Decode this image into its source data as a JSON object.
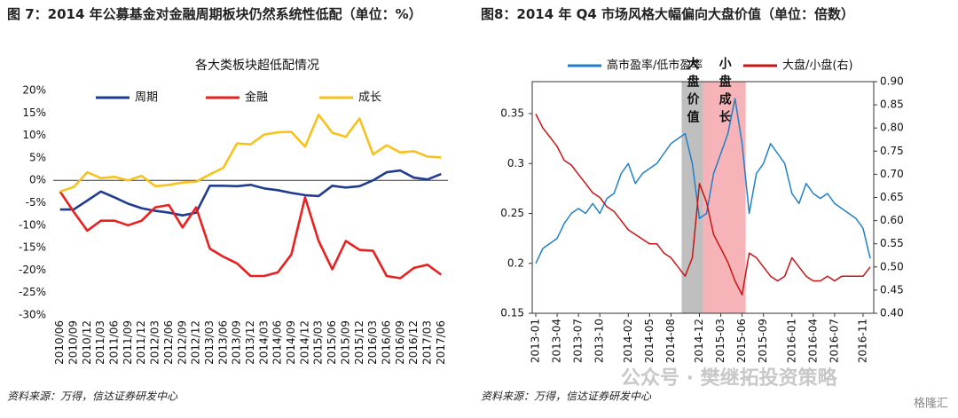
{
  "chart_data": [
    {
      "type": "line",
      "title": "图 7：2014 年公募基金对金融周期板块仍然系统性低配（单位：%）",
      "subtitle": "各大类板块超低配情况",
      "source": "资料来源：万得，信达证券研发中心",
      "legend": "top",
      "categories": [
        "2010/06",
        "2010/09",
        "2010/12",
        "2011/03",
        "2011/06",
        "2011/09",
        "2011/12",
        "2012/03",
        "2012/06",
        "2012/09",
        "2012/12",
        "2013/03",
        "2013/06",
        "2013/09",
        "2013/12",
        "2014/03",
        "2014/06",
        "2014/09",
        "2014/12",
        "2015/03",
        "2015/06",
        "2015/09",
        "2015/12",
        "2016/03",
        "2016/06",
        "2016/09",
        "2016/12",
        "2017/03",
        "2017/06"
      ],
      "series": [
        {
          "name": "周期",
          "color": "#1f3c8f",
          "values": [
            -6.5,
            -6.5,
            -4.5,
            -2.5,
            -3.8,
            -5.2,
            -6.2,
            -6.8,
            -7.2,
            -7.8,
            -7.2,
            -1.2,
            -1.2,
            -1.3,
            -1,
            -1.8,
            -2.2,
            -2.8,
            -3.3,
            -3.5,
            -1.2,
            -1.6,
            -1.3,
            0,
            1.8,
            2.2,
            0.6,
            0.2,
            1.4
          ]
        },
        {
          "name": "金融",
          "color": "#e8201f",
          "values": [
            -2.5,
            -7,
            -11.2,
            -9,
            -9,
            -10,
            -9,
            -6,
            -5.5,
            -10.5,
            -6,
            -15.2,
            -17,
            -18.5,
            -21.3,
            -21.3,
            -20.5,
            -16.5,
            -3.8,
            -13.5,
            -19.8,
            -13.5,
            -15.5,
            -15.7,
            -21.3,
            -21.8,
            -19.5,
            -18.8,
            -21
          ]
        },
        {
          "name": "成长",
          "color": "#f7c21d",
          "values": [
            -2.5,
            -1.5,
            1.8,
            0.5,
            0.8,
            0,
            1,
            -1.3,
            -1,
            -0.5,
            -0.3,
            1.3,
            2.8,
            8.2,
            8,
            10.2,
            10.7,
            10.8,
            7.5,
            14.6,
            10.6,
            9.7,
            13.8,
            5.8,
            7.8,
            6.2,
            6.5,
            5.3,
            5.1
          ]
        }
      ],
      "ylim": [
        -30,
        20
      ],
      "yticks": [
        {
          "value": 20,
          "label": "20%"
        },
        {
          "value": 15,
          "label": "15%"
        },
        {
          "value": 10,
          "label": "10%"
        },
        {
          "value": 5,
          "label": "5%"
        },
        {
          "value": 0,
          "label": "0%"
        },
        {
          "value": -5,
          "label": "-5%"
        },
        {
          "value": -10,
          "label": "-10%"
        },
        {
          "value": -15,
          "label": "-15%"
        },
        {
          "value": -20,
          "label": "-20%"
        },
        {
          "value": -25,
          "label": "-25%"
        },
        {
          "value": -30,
          "label": "-30%"
        }
      ]
    },
    {
      "type": "line",
      "title": "图8：2014 年 Q4 市场风格大幅偏向大盘价值（单位：倍数）",
      "source": "资料来源：万得，信达证券研发中心",
      "legend": "top",
      "categories": [
        "2013-01",
        null,
        null,
        "2013-04",
        null,
        null,
        "2013-07",
        null,
        null,
        "2013-10",
        null,
        null,
        null,
        "2014-02",
        null,
        null,
        "2014-05",
        null,
        null,
        "2014-08",
        null,
        null,
        null,
        "2014-12",
        null,
        null,
        "2015-03",
        null,
        null,
        "2015-06",
        null,
        null,
        "2015-09",
        null,
        null,
        null,
        "2016-01",
        null,
        null,
        "2016-04",
        null,
        null,
        "2016-07",
        null,
        null,
        null,
        "2016-11",
        null
      ],
      "series": [
        {
          "name": "高市盈率/低市盈率",
          "color": "#1f7fc8",
          "values": [
            0.2,
            0.215,
            0.22,
            0.225,
            0.24,
            0.25,
            0.255,
            0.25,
            0.26,
            0.25,
            0.265,
            0.27,
            0.29,
            0.3,
            0.28,
            0.29,
            0.295,
            0.3,
            0.31,
            0.32,
            0.325,
            0.33,
            0.3,
            0.245,
            0.25,
            0.29,
            0.31,
            0.33,
            0.365,
            0.32,
            0.25,
            0.29,
            0.3,
            0.32,
            0.31,
            0.3,
            0.27,
            0.26,
            0.28,
            0.27,
            0.265,
            0.27,
            0.26,
            0.255,
            0.25,
            0.245,
            0.235,
            0.205
          ]
        },
        {
          "name": "大盘/小盘(右)",
          "color": "#c81414",
          "axis": "y2",
          "values": [
            0.83,
            0.8,
            0.78,
            0.76,
            0.73,
            0.72,
            0.7,
            0.68,
            0.66,
            0.65,
            0.63,
            0.62,
            0.6,
            0.58,
            0.57,
            0.56,
            0.55,
            0.55,
            0.53,
            0.52,
            0.5,
            0.48,
            0.52,
            0.68,
            0.64,
            0.57,
            0.54,
            0.51,
            0.47,
            0.44,
            0.53,
            0.52,
            0.5,
            0.48,
            0.47,
            0.48,
            0.52,
            0.5,
            0.48,
            0.47,
            0.47,
            0.48,
            0.47,
            0.48,
            0.48,
            0.48,
            0.48,
            0.5
          ]
        }
      ],
      "ylim": [
        0.15,
        0.382
      ],
      "yticks": [
        0.15,
        0.2,
        0.25,
        0.3,
        0.35
      ],
      "y2lim": [
        0.4,
        0.9
      ],
      "y2ticks": [
        {
          "value": 0.4,
          "label": "0.40"
        },
        {
          "value": 0.45,
          "label": "0.45"
        },
        {
          "value": 0.5,
          "label": "0.50"
        },
        {
          "value": 0.55,
          "label": "0.55"
        },
        {
          "value": 0.6,
          "label": "0.60"
        },
        {
          "value": 0.65,
          "label": "0.65"
        },
        {
          "value": 0.7,
          "label": "0.70"
        },
        {
          "value": 0.75,
          "label": "0.75"
        },
        {
          "value": 0.8,
          "label": "0.80"
        },
        {
          "value": 0.85,
          "label": "0.85"
        },
        {
          "value": 0.9,
          "label": "0.90"
        }
      ],
      "shaded_regions": [
        {
          "text": "大盘价值",
          "start": 21,
          "end": 24,
          "color": "#bfbfbf"
        },
        {
          "text": "小盘成长",
          "start": 24,
          "end": 30,
          "color": "#f7b4b8"
        }
      ]
    }
  ],
  "watermark": "公众号 · 樊继拓投资策略",
  "logo": "格隆汇"
}
